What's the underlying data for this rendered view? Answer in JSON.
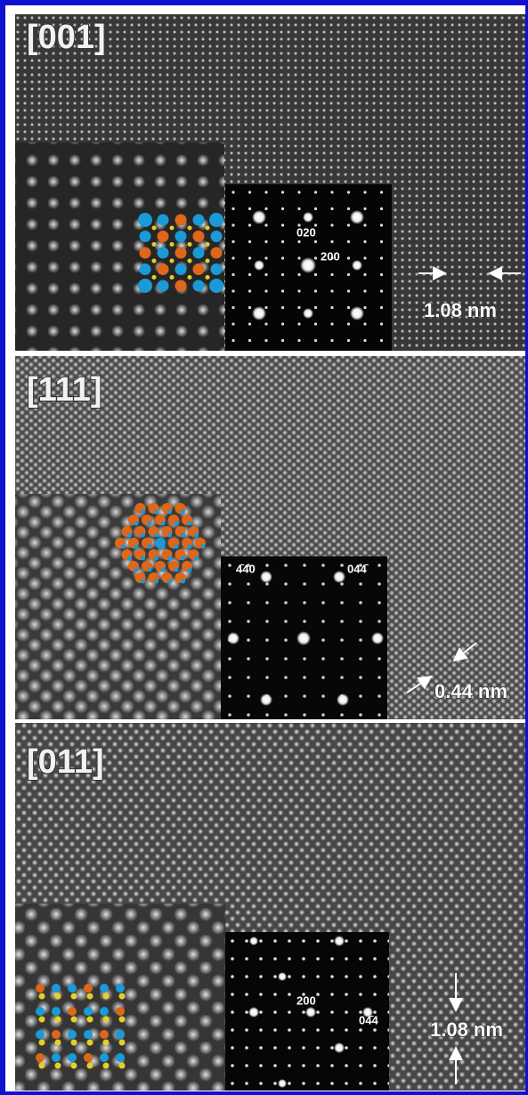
{
  "panels": [
    {
      "zone": "[001]",
      "indices": [
        "020",
        "200"
      ],
      "scale": "1.08 nm"
    },
    {
      "zone": "[111]",
      "indices": [
        "4̄40",
        "044̄"
      ],
      "scale": "0.44 nm"
    },
    {
      "zone": "[011]",
      "indices": [
        "200",
        "04̄4"
      ],
      "scale": "1.08 nm"
    }
  ]
}
